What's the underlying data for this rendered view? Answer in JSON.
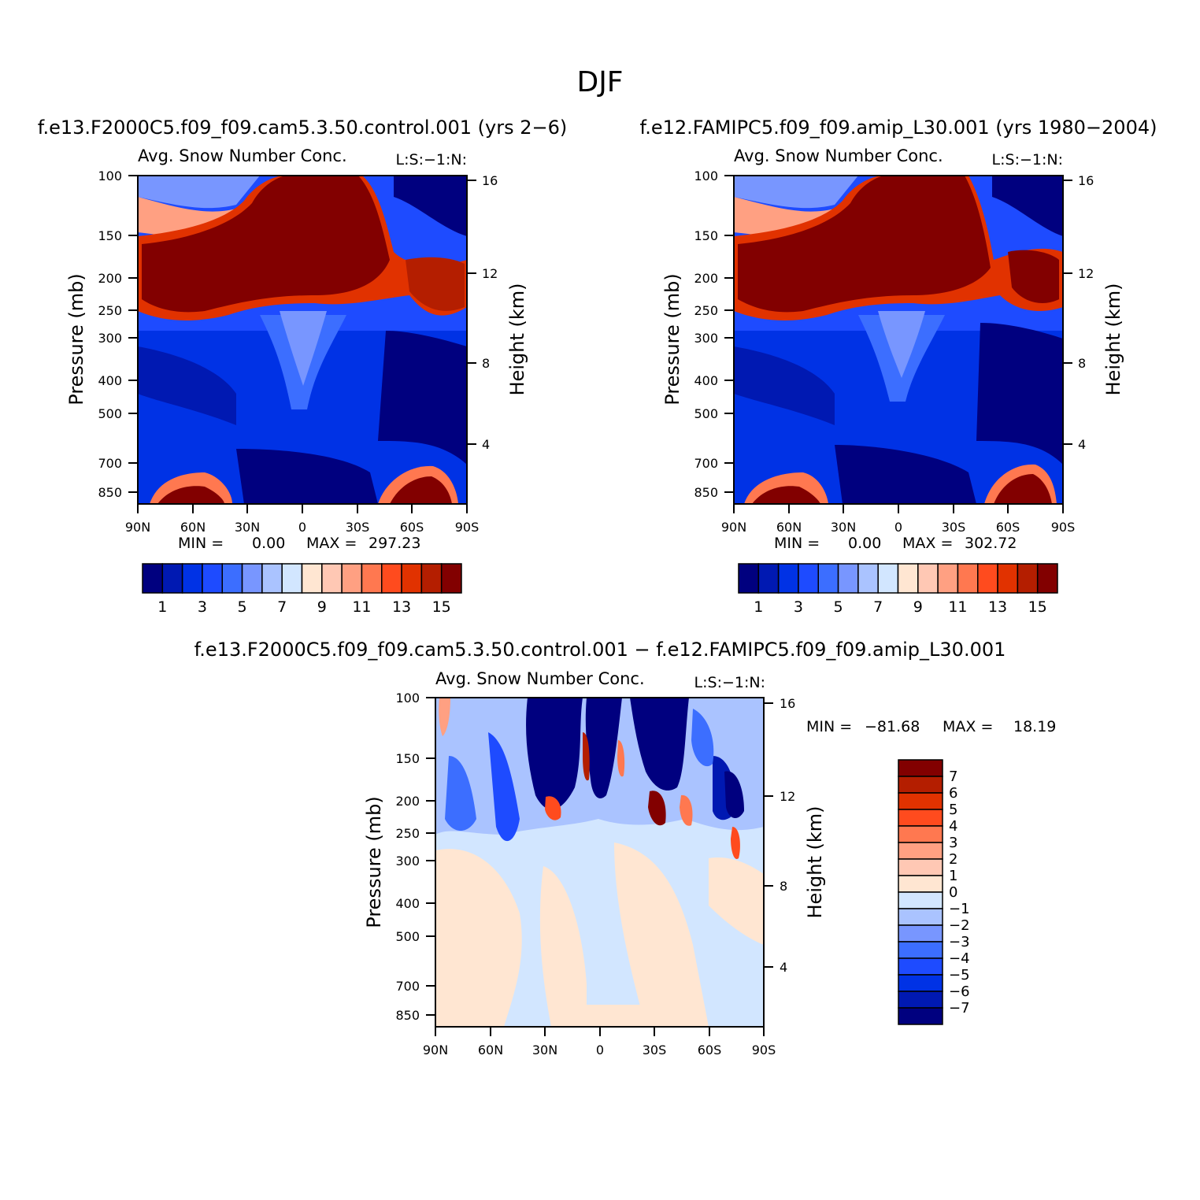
{
  "figure_title": "DJF",
  "chart_data": [
    {
      "type": "heatmap",
      "case_title": "f.e13.F2000C5.f09_f09.cam5.3.50.control.001 (yrs 2−6)",
      "title": "Avg. Snow Number Conc.",
      "level_tag": "L:S:−1:N:",
      "ylabel": "Pressure (mb)",
      "ylabel_right": "Height (km)",
      "x_ticks": [
        "90N",
        "60N",
        "30N",
        "0",
        "30S",
        "60S",
        "90S"
      ],
      "y_ticks": [
        "100",
        "150",
        "200",
        "250",
        "300",
        "400",
        "500",
        "700",
        "850"
      ],
      "y_right_ticks": [
        "16",
        "12",
        "8",
        "4"
      ],
      "min_label": "MIN =",
      "min_value": "0.00",
      "max_label": "MAX =",
      "max_value": "297.23",
      "colorbar_ticks": [
        "1",
        "3",
        "5",
        "7",
        "9",
        "11",
        "13",
        "15"
      ],
      "colors": [
        "#00007f",
        "#0019b2",
        "#0032e5",
        "#1e4bff",
        "#3c6eff",
        "#7896ff",
        "#aac3ff",
        "#d2e6ff",
        "#ffe6d2",
        "#ffc8b4",
        "#ffa082",
        "#ff7850",
        "#ff4b1e",
        "#e13200",
        "#b41e00",
        "#820000"
      ]
    },
    {
      "type": "heatmap",
      "case_title": "f.e12.FAMIPC5.f09_f09.amip_L30.001 (yrs 1980−2004)",
      "title": "Avg. Snow Number Conc.",
      "level_tag": "L:S:−1:N:",
      "ylabel": "Pressure (mb)",
      "ylabel_right": "Height (km)",
      "x_ticks": [
        "90N",
        "60N",
        "30N",
        "0",
        "30S",
        "60S",
        "90S"
      ],
      "y_ticks": [
        "100",
        "150",
        "200",
        "250",
        "300",
        "400",
        "500",
        "700",
        "850"
      ],
      "y_right_ticks": [
        "16",
        "12",
        "8",
        "4"
      ],
      "min_label": "MIN =",
      "min_value": "0.00",
      "max_label": "MAX =",
      "max_value": "302.72",
      "colorbar_ticks": [
        "1",
        "3",
        "5",
        "7",
        "9",
        "11",
        "13",
        "15"
      ],
      "colors": [
        "#00007f",
        "#0019b2",
        "#0032e5",
        "#1e4bff",
        "#3c6eff",
        "#7896ff",
        "#aac3ff",
        "#d2e6ff",
        "#ffe6d2",
        "#ffc8b4",
        "#ffa082",
        "#ff7850",
        "#ff4b1e",
        "#e13200",
        "#b41e00",
        "#820000"
      ]
    },
    {
      "type": "heatmap",
      "case_title": "f.e13.F2000C5.f09_f09.cam5.3.50.control.001 − f.e12.FAMIPC5.f09_f09.amip_L30.001",
      "title": "Avg. Snow Number Conc.",
      "level_tag": "L:S:−1:N:",
      "ylabel": "Pressure (mb)",
      "ylabel_right": "Height (km)",
      "x_ticks": [
        "90N",
        "60N",
        "30N",
        "0",
        "30S",
        "60S",
        "90S"
      ],
      "y_ticks": [
        "100",
        "150",
        "200",
        "250",
        "300",
        "400",
        "500",
        "700",
        "850"
      ],
      "y_right_ticks": [
        "16",
        "12",
        "8",
        "4"
      ],
      "min_label": "MIN =",
      "min_value": "−81.68",
      "max_label": "MAX =",
      "max_value": "18.19",
      "colorbar_ticks": [
        "7",
        "6",
        "5",
        "4",
        "3",
        "2",
        "1",
        "0",
        "−1",
        "−2",
        "−3",
        "−4",
        "−5",
        "−6",
        "−7"
      ],
      "colors": [
        "#820000",
        "#b41e00",
        "#e13200",
        "#ff4b1e",
        "#ff7850",
        "#ffa082",
        "#ffc8b4",
        "#ffe6d2",
        "#d2e6ff",
        "#aac3ff",
        "#7896ff",
        "#3c6eff",
        "#1e4bff",
        "#0032e5",
        "#0019b2",
        "#00007f"
      ]
    }
  ]
}
